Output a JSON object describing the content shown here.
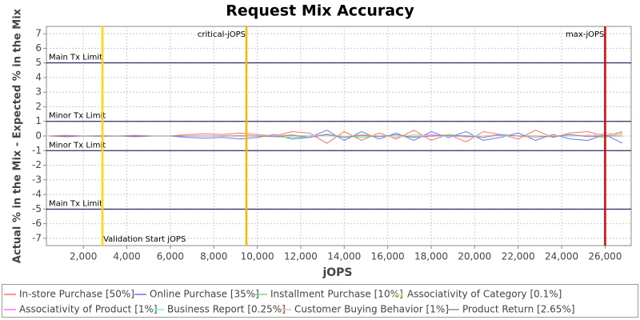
{
  "chart_data": {
    "type": "line",
    "title": "Request Mix Accuracy",
    "x_label": "jOPS",
    "y_label": "Actual % in the Mix - Expected % in the Mix",
    "xlim": [
      300,
      27200
    ],
    "ylim": [
      -7.5,
      7.5
    ],
    "xticks": [
      {
        "value": 2000,
        "label": "2,000"
      },
      {
        "value": 4000,
        "label": "4,000"
      },
      {
        "value": 6000,
        "label": "6,000"
      },
      {
        "value": 8000,
        "label": "8,000"
      },
      {
        "value": 10000,
        "label": "10,000"
      },
      {
        "value": 12000,
        "label": "12,000"
      },
      {
        "value": 14000,
        "label": "14,000"
      },
      {
        "value": 16000,
        "label": "16,000"
      },
      {
        "value": 18000,
        "label": "18,000"
      },
      {
        "value": 20000,
        "label": "20,000"
      },
      {
        "value": 22000,
        "label": "22,000"
      },
      {
        "value": 24000,
        "label": "24,000"
      },
      {
        "value": 26000,
        "label": "26,000"
      }
    ],
    "yticks": [
      -7,
      -6,
      -5,
      -4,
      -3,
      -2,
      -1,
      0,
      1,
      2,
      3,
      4,
      5,
      6,
      7
    ],
    "grid": true,
    "range_markers": [
      {
        "value": 5,
        "label": "Main Tx Limit"
      },
      {
        "value": 1,
        "label": "Minor Tx Limit"
      },
      {
        "value": -1,
        "label": "Minor Tx Limit"
      },
      {
        "value": -5,
        "label": "Main Tx Limit"
      }
    ],
    "domain_markers": [
      {
        "value": 2880,
        "label": "Validation Start jOPS",
        "color": "#ffd800"
      },
      {
        "value": 9500,
        "label": "critical-jOPS",
        "color": "#ffb400"
      },
      {
        "value": 26000,
        "label": "max-jOPS",
        "color": "#e00000"
      }
    ],
    "x": [
      400,
      1200,
      2000,
      2800,
      3600,
      4400,
      5200,
      6000,
      6800,
      7600,
      8400,
      9200,
      10000,
      10800,
      11600,
      12400,
      13200,
      14000,
      14800,
      15600,
      16400,
      17200,
      18000,
      18800,
      19600,
      20400,
      21200,
      22000,
      22800,
      23600,
      24400,
      25200,
      26000,
      26800
    ],
    "series": [
      {
        "name": "In-store Purchase [50%]",
        "color": "#ff6f6f",
        "values": [
          0,
          0.05,
          0,
          0.02,
          0,
          0.05,
          0,
          0,
          0.1,
          0.15,
          0.1,
          0.2,
          0.1,
          0,
          0.3,
          0.2,
          -0.5,
          0.3,
          -0.3,
          0.2,
          -0.2,
          0.4,
          -0.3,
          0.1,
          -0.4,
          0.3,
          0.1,
          -0.2,
          0.4,
          -0.1,
          0.2,
          0.3,
          0,
          0.3
        ]
      },
      {
        "name": "Online Purchase [35%]",
        "color": "#7070ff",
        "values": [
          0,
          -0.05,
          0,
          -0.02,
          0,
          -0.05,
          0,
          0,
          -0.1,
          -0.15,
          -0.1,
          -0.2,
          -0.1,
          0.1,
          -0.2,
          -0.1,
          0.4,
          -0.3,
          0.3,
          -0.2,
          0.2,
          -0.3,
          0.3,
          -0.1,
          0.3,
          -0.3,
          -0.1,
          0.2,
          -0.3,
          0.1,
          -0.2,
          -0.3,
          0.1,
          -0.5
        ]
      },
      {
        "name": "Installment Purchase [10%]",
        "color": "#6fe36f",
        "values": [
          0,
          0,
          0,
          0,
          0,
          0,
          0,
          0,
          0,
          0,
          0,
          0,
          0,
          -0.05,
          -0.1,
          -0.1,
          0.1,
          0,
          -0.1,
          0,
          0,
          -0.1,
          0,
          0.1,
          0,
          0,
          0,
          0,
          -0.1,
          0,
          0,
          0,
          -0.1,
          0.2
        ]
      },
      {
        "name": "Associativity of Category [0.1%]",
        "color": "#f0f070",
        "values": [
          0,
          0,
          0,
          0,
          0,
          0,
          0,
          0,
          0,
          0,
          0,
          0,
          0,
          0,
          0,
          0,
          0.01,
          0,
          0,
          0,
          0,
          0,
          0,
          0,
          0.01,
          0,
          0,
          0,
          0,
          0,
          0,
          0,
          0,
          0
        ]
      },
      {
        "name": "Associativity of Product [1%]",
        "color": "#ff70ff",
        "values": [
          0,
          0,
          0,
          0,
          0,
          0,
          0,
          0,
          0,
          0,
          0,
          0,
          0,
          0,
          0.05,
          0,
          0.1,
          -0.1,
          0.05,
          0,
          0,
          -0.05,
          0.1,
          0,
          -0.05,
          0,
          0.05,
          0,
          0,
          0,
          0,
          0.05,
          0,
          0
        ]
      },
      {
        "name": "Business Report [0.25%]",
        "color": "#70f0f0",
        "values": [
          0,
          0,
          0,
          0,
          0,
          0,
          0,
          0,
          0,
          0,
          0,
          0,
          0,
          0,
          0,
          0.02,
          0,
          -0.03,
          0,
          0.02,
          0,
          0,
          -0.02,
          0,
          0.03,
          0,
          0,
          0,
          0,
          0,
          0.02,
          0,
          0,
          0
        ]
      },
      {
        "name": "Customer Buying Behavior [1%]",
        "color": "#ffb4a0",
        "values": [
          0,
          0,
          0,
          0,
          0,
          0,
          0,
          0,
          0,
          0,
          0,
          0.05,
          0,
          0,
          0.1,
          -0.1,
          0.15,
          -0.1,
          0.1,
          0,
          -0.1,
          0.1,
          0,
          0.1,
          -0.1,
          0,
          0.1,
          0,
          -0.1,
          0,
          0.1,
          0,
          0.2,
          0.1
        ]
      },
      {
        "name": "Product Return [2.65%]",
        "color": "#909090",
        "values": [
          0,
          0,
          0,
          0,
          0,
          0,
          0,
          0,
          0,
          0,
          0,
          0,
          0,
          -0.05,
          0.05,
          -0.1,
          0.1,
          -0.1,
          0.05,
          -0.05,
          0.1,
          -0.1,
          0,
          0.05,
          0,
          -0.1,
          0.1,
          0,
          0,
          -0.05,
          0.1,
          -0.05,
          0,
          0
        ]
      }
    ]
  }
}
